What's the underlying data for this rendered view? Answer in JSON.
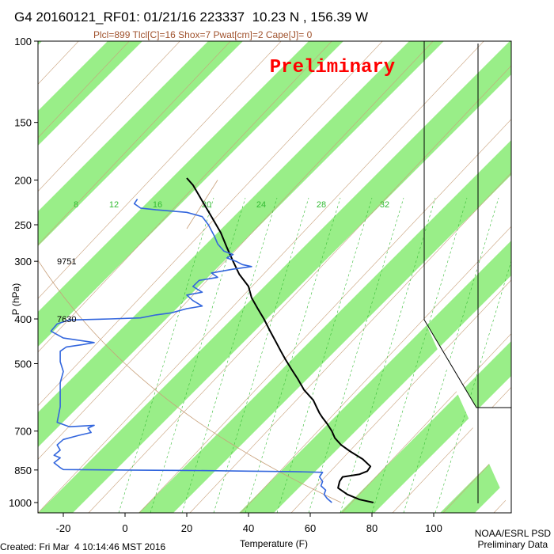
{
  "header": {
    "title": "G4 20160121_RF01: 01/21/16 223337  10.23 N , 156.39 W",
    "subtitle": "Plcl=899 Tlcl[C]=16 Shox=7 Pwat[cm]=2 Cape[J]= 0",
    "stamp": "Preliminary"
  },
  "footer": {
    "created": "Created: Fri Mar  4 10:14:46 MST 2016",
    "credit_line1": "NOAA/ESRL PSD",
    "credit_line2": "Preliminary Data"
  },
  "chart_data": {
    "type": "line",
    "title": "G4 20160121_RF01: 01/21/16 223337  10.23 N , 156.39 W",
    "xlabel": "Temperature (F)",
    "ylabel": "P (hPa)",
    "x_ticks": [
      -20,
      0,
      20,
      40,
      60,
      80,
      100
    ],
    "y_ticks": [
      100,
      150,
      200,
      250,
      300,
      400,
      500,
      700,
      850,
      1000
    ],
    "xlim": [
      -28,
      108
    ],
    "ylim": [
      1050,
      100
    ],
    "y_scale": "log",
    "height_labels": [
      {
        "pressure": 300,
        "height": "9751"
      },
      {
        "pressure": 400,
        "height": "7630"
      }
    ],
    "mixing_ratio_labels": [
      "8",
      "12",
      "16",
      "20",
      "24",
      "28",
      "32"
    ],
    "colors": {
      "temperature": "#000000",
      "dewpoint": "#3366dd",
      "band": "#99ee88",
      "isotherm_labels": "#c8a07a",
      "mixing_ratio": "#33bb33",
      "title": "#000000",
      "subtitle": "#a0522d",
      "stamp": "#ff0000"
    },
    "series": [
      {
        "name": "Temperature",
        "color": "#000000",
        "points": [
          [
            80.5,
            1000
          ],
          [
            76,
            985
          ],
          [
            72,
            960
          ],
          [
            69,
            930
          ],
          [
            69.5,
            900
          ],
          [
            70.5,
            880
          ],
          [
            76,
            868
          ],
          [
            78.5,
            855
          ],
          [
            79.5,
            835
          ],
          [
            77,
            805
          ],
          [
            73,
            775
          ],
          [
            70,
            750
          ],
          [
            68,
            725
          ],
          [
            67,
            700
          ],
          [
            65.5,
            675
          ],
          [
            64,
            655
          ],
          [
            63,
            640
          ],
          [
            62,
            620
          ],
          [
            61,
            600
          ],
          [
            58,
            570
          ],
          [
            56,
            540
          ],
          [
            54,
            515
          ],
          [
            52,
            490
          ],
          [
            50.5,
            470
          ],
          [
            49,
            450
          ],
          [
            47,
            425
          ],
          [
            45,
            400
          ],
          [
            43,
            380
          ],
          [
            41,
            360
          ],
          [
            40,
            340
          ],
          [
            37,
            320
          ],
          [
            35,
            300
          ],
          [
            33,
            280
          ],
          [
            31,
            260
          ],
          [
            28,
            240
          ],
          [
            25,
            222
          ],
          [
            22,
            205
          ],
          [
            20,
            198
          ]
        ]
      },
      {
        "name": "Dewpoint",
        "color": "#3366dd",
        "points": [
          [
            67,
            1000
          ],
          [
            65.5,
            980
          ],
          [
            64.5,
            960
          ],
          [
            65,
            940
          ],
          [
            63.5,
            920
          ],
          [
            64,
            900
          ],
          [
            63,
            880
          ],
          [
            64,
            860
          ],
          [
            55,
            857
          ],
          [
            40,
            855
          ],
          [
            20,
            852
          ],
          [
            0,
            850
          ],
          [
            -20,
            848
          ],
          [
            -21,
            840
          ],
          [
            -23,
            820
          ],
          [
            -21,
            800
          ],
          [
            -23,
            790
          ],
          [
            -21,
            770
          ],
          [
            -22,
            750
          ],
          [
            -20,
            730
          ],
          [
            -15,
            715
          ],
          [
            -11,
            705
          ],
          [
            -12,
            690
          ],
          [
            -10,
            680
          ],
          [
            -18,
            685
          ],
          [
            -22,
            670
          ],
          [
            -21,
            620
          ],
          [
            -21,
            600
          ],
          [
            -21,
            550
          ],
          [
            -20,
            520
          ],
          [
            -21,
            495
          ],
          [
            -21,
            470
          ],
          [
            -19,
            460
          ],
          [
            -14,
            455
          ],
          [
            -10,
            450
          ],
          [
            -20,
            440
          ],
          [
            -24,
            425
          ],
          [
            -22,
            410
          ],
          [
            -18,
            402
          ],
          [
            -5,
            400
          ],
          [
            5,
            398
          ],
          [
            10,
            392
          ],
          [
            15,
            388
          ],
          [
            20,
            380
          ],
          [
            25,
            375
          ],
          [
            22,
            365
          ],
          [
            20,
            355
          ],
          [
            25,
            350
          ],
          [
            22,
            340
          ],
          [
            24,
            330
          ],
          [
            30,
            325
          ],
          [
            28,
            318
          ],
          [
            35,
            312
          ],
          [
            41,
            308
          ],
          [
            38,
            305
          ],
          [
            36,
            300
          ],
          [
            33,
            295
          ],
          [
            35,
            290
          ],
          [
            32,
            285
          ],
          [
            30,
            275
          ],
          [
            29,
            265
          ],
          [
            27,
            250
          ],
          [
            25,
            240
          ],
          [
            20,
            235
          ],
          [
            10,
            232
          ],
          [
            5,
            230
          ],
          [
            3,
            225
          ],
          [
            4,
            220
          ]
        ]
      }
    ]
  }
}
